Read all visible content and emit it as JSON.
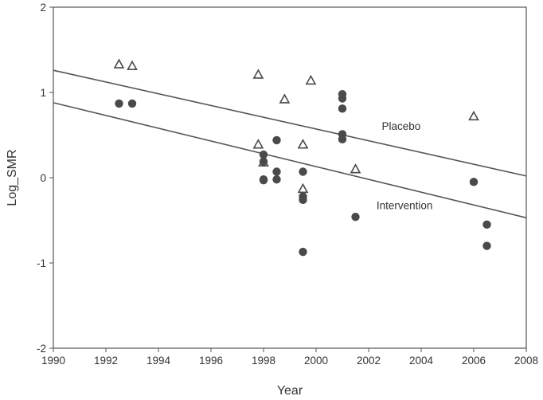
{
  "chart_data": {
    "type": "scatter",
    "title": "",
    "xlabel": "Year",
    "ylabel": "Log_SMR",
    "xlim": [
      1990,
      2008
    ],
    "ylim": [
      -2,
      2
    ],
    "xticks": [
      1990,
      1992,
      1994,
      1996,
      1998,
      2000,
      2002,
      2004,
      2006,
      2008
    ],
    "yticks": [
      -2,
      -1,
      0,
      1,
      2
    ],
    "grid": false,
    "series": [
      {
        "marker": "open-triangle",
        "points": [
          [
            1992.5,
            1.33
          ],
          [
            1993.0,
            1.31
          ],
          [
            1997.8,
            1.21
          ],
          [
            1998.8,
            0.92
          ],
          [
            1999.8,
            1.14
          ],
          [
            1997.8,
            0.39
          ],
          [
            1998.0,
            0.18
          ],
          [
            1999.5,
            0.39
          ],
          [
            1999.5,
            -0.13
          ],
          [
            2001.5,
            0.1
          ],
          [
            2006.0,
            0.72
          ]
        ]
      },
      {
        "marker": "filled-circle",
        "points": [
          [
            1992.5,
            0.87
          ],
          [
            1993.0,
            0.87
          ],
          [
            1998.0,
            0.27
          ],
          [
            1998.0,
            0.19
          ],
          [
            1998.0,
            -0.03
          ],
          [
            1998.0,
            -0.02
          ],
          [
            1998.5,
            0.44
          ],
          [
            1998.5,
            0.07
          ],
          [
            1998.5,
            -0.02
          ],
          [
            1999.5,
            0.07
          ],
          [
            1999.5,
            -0.22
          ],
          [
            1999.5,
            -0.26
          ],
          [
            1999.5,
            -0.87
          ],
          [
            2001.0,
            0.98
          ],
          [
            2001.0,
            0.93
          ],
          [
            2001.0,
            0.81
          ],
          [
            2001.0,
            0.51
          ],
          [
            2001.0,
            0.45
          ],
          [
            2001.5,
            -0.46
          ],
          [
            2006.0,
            -0.05
          ],
          [
            2006.5,
            -0.55
          ],
          [
            2006.5,
            -0.8
          ]
        ]
      }
    ],
    "lines": [
      {
        "name": "Placebo",
        "x": [
          1990,
          2008
        ],
        "y": [
          1.26,
          0.02
        ],
        "label_at": [
          2002.5,
          0.56
        ]
      },
      {
        "name": "Intervention",
        "x": [
          1990,
          2008
        ],
        "y": [
          0.88,
          -0.47
        ],
        "label_at": [
          2002.3,
          -0.37
        ]
      }
    ]
  }
}
